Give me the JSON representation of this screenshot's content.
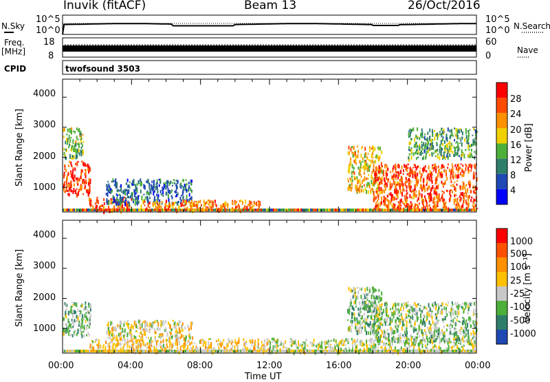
{
  "header": {
    "station": "Inuvik (fitACF)",
    "beam": "Beam 13",
    "date": "26/Oct/2016"
  },
  "top_panels": {
    "nsky_label": "N.Sky",
    "nsearch_label": "N.Search",
    "left_ticks": [
      "10^5",
      "10^0"
    ],
    "right_ticks": [
      "10^5",
      "10^0"
    ],
    "freq_label": "Freq.",
    "freq_unit": "[MHz]",
    "freq_ticks": [
      "18",
      "8"
    ],
    "nave_ticks": [
      "60",
      "0"
    ],
    "nave_label": "Nave",
    "cpid_label": "CPID",
    "cpid_value": "twofsound 3503"
  },
  "power_panel": {
    "ylabel": "Slant Range [km]",
    "yticks": [
      "4000",
      "3000",
      "2000",
      "1000"
    ],
    "colorbar_label": "Power [dB]",
    "colorbar_ticks": [
      "28",
      "24",
      "20",
      "16",
      "12",
      "8",
      "4"
    ],
    "colors": [
      "#0000ff",
      "#1e48b4",
      "#2e7d6a",
      "#4caf3a",
      "#f0d000",
      "#ff9000",
      "#ff4a00",
      "#ff0000"
    ]
  },
  "velocity_panel": {
    "ylabel": "Slant Range [km]",
    "yticks": [
      "4000",
      "3000",
      "2000",
      "1000"
    ],
    "colorbar_label": "Velocity [m s⁻¹]",
    "colorbar_ticks": [
      "1000",
      "500",
      "100",
      "25",
      "-25",
      "-100",
      "-500",
      "-1000"
    ],
    "colors": [
      "#1e48b4",
      "#2e7d6a",
      "#4caf3a",
      "#c8c8c8",
      "#ffc000",
      "#ff9000",
      "#ff5000",
      "#ff0000"
    ]
  },
  "x_axis": {
    "ticks": [
      "00:00",
      "04:00",
      "08:00",
      "12:00",
      "16:00",
      "20:00",
      "00:00"
    ],
    "label": "Time UT"
  },
  "chart_data": [
    {
      "type": "heatmap",
      "title": "Power",
      "xlabel": "Time UT",
      "ylabel": "Slant Range [km]",
      "xlim": [
        0,
        24
      ],
      "ylim": [
        180,
        4600
      ],
      "colorbar": {
        "label": "Power [dB]",
        "range": [
          0,
          30
        ]
      },
      "regions": [
        {
          "x": [
            0.0,
            1.6
          ],
          "y": [
            800,
            1900
          ],
          "value": 26
        },
        {
          "x": [
            0.0,
            1.2
          ],
          "y": [
            2000,
            3000
          ],
          "value": 14
        },
        {
          "x": [
            1.5,
            4.0
          ],
          "y": [
            250,
            700
          ],
          "value": 24
        },
        {
          "x": [
            2.5,
            7.5
          ],
          "y": [
            500,
            1300
          ],
          "value": 8
        },
        {
          "x": [
            4.5,
            11.5
          ],
          "y": [
            250,
            600
          ],
          "value": 22
        },
        {
          "x": [
            16.5,
            18.5
          ],
          "y": [
            900,
            2400
          ],
          "value": 18
        },
        {
          "x": [
            18.0,
            24.0
          ],
          "y": [
            300,
            1800
          ],
          "value": 24
        },
        {
          "x": [
            20.0,
            24.0
          ],
          "y": [
            2000,
            3000
          ],
          "value": 12
        }
      ]
    },
    {
      "type": "heatmap",
      "title": "Velocity",
      "xlabel": "Time UT",
      "ylabel": "Slant Range [km]",
      "xlim": [
        0,
        24
      ],
      "ylim": [
        180,
        4600
      ],
      "colorbar": {
        "label": "Velocity [m s⁻¹]",
        "range": [
          -1000,
          1000
        ]
      },
      "regions": [
        {
          "x": [
            0.0,
            1.6
          ],
          "y": [
            800,
            1900
          ],
          "value": -300
        },
        {
          "x": [
            2.5,
            7.5
          ],
          "y": [
            700,
            1300
          ],
          "value": 0
        },
        {
          "x": [
            1.5,
            12.0
          ],
          "y": [
            250,
            700
          ],
          "value": 80
        },
        {
          "x": [
            12.0,
            24.0
          ],
          "y": [
            250,
            700
          ],
          "value": -150
        },
        {
          "x": [
            16.5,
            18.5
          ],
          "y": [
            900,
            2400
          ],
          "value": -300
        },
        {
          "x": [
            18.0,
            24.0
          ],
          "y": [
            600,
            1900
          ],
          "value": -250
        }
      ]
    }
  ]
}
